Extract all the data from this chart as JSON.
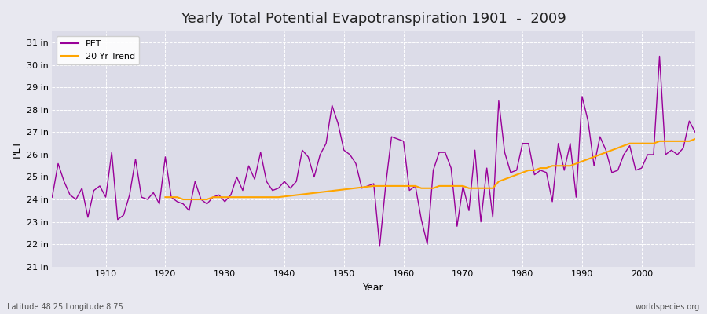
{
  "title": "Yearly Total Potential Evapotranspiration 1901  -  2009",
  "xlabel": "Year",
  "ylabel": "PET",
  "lat_lon_label": "Latitude 48.25 Longitude 8.75",
  "source_label": "worldspecies.org",
  "pet_color": "#990099",
  "trend_color": "#FFA500",
  "background_color": "#e8e8f0",
  "plot_bg_color": "#dcdce8",
  "ylim": [
    21,
    31.5
  ],
  "yticks": [
    21,
    22,
    23,
    24,
    25,
    26,
    27,
    28,
    29,
    30,
    31
  ],
  "ytick_labels": [
    "21 in",
    "22 in",
    "23 in",
    "24 in",
    "25 in",
    "26 in",
    "27 in",
    "28 in",
    "29 in",
    "30 in",
    "31 in"
  ],
  "years": [
    1901,
    1902,
    1903,
    1904,
    1905,
    1906,
    1907,
    1908,
    1909,
    1910,
    1911,
    1912,
    1913,
    1914,
    1915,
    1916,
    1917,
    1918,
    1919,
    1920,
    1921,
    1922,
    1923,
    1924,
    1925,
    1926,
    1927,
    1928,
    1929,
    1930,
    1931,
    1932,
    1933,
    1934,
    1935,
    1936,
    1937,
    1938,
    1939,
    1940,
    1941,
    1942,
    1943,
    1944,
    1945,
    1946,
    1947,
    1948,
    1949,
    1950,
    1951,
    1952,
    1953,
    1954,
    1955,
    1956,
    1957,
    1958,
    1959,
    1960,
    1961,
    1962,
    1963,
    1964,
    1965,
    1966,
    1967,
    1968,
    1969,
    1970,
    1971,
    1972,
    1973,
    1974,
    1975,
    1976,
    1977,
    1978,
    1979,
    1980,
    1981,
    1982,
    1983,
    1984,
    1985,
    1986,
    1987,
    1988,
    1989,
    1990,
    1991,
    1992,
    1993,
    1994,
    1995,
    1996,
    1997,
    1998,
    1999,
    2000,
    2001,
    2002,
    2003,
    2004,
    2005,
    2006,
    2007,
    2008,
    2009
  ],
  "pet_values": [
    24.1,
    25.6,
    24.8,
    24.2,
    24.0,
    24.5,
    23.2,
    24.4,
    24.6,
    24.1,
    26.1,
    23.1,
    23.3,
    24.2,
    25.8,
    24.1,
    24.0,
    24.3,
    23.8,
    25.9,
    24.1,
    23.9,
    23.8,
    23.5,
    24.8,
    24.0,
    23.8,
    24.1,
    24.2,
    23.9,
    24.2,
    25.0,
    24.4,
    25.5,
    24.9,
    26.1,
    24.8,
    24.4,
    24.5,
    24.8,
    24.5,
    24.8,
    26.2,
    25.9,
    25.0,
    26.0,
    26.5,
    28.2,
    27.4,
    26.2,
    26.0,
    25.6,
    24.5,
    24.6,
    24.7,
    21.9,
    24.6,
    26.8,
    26.7,
    26.6,
    24.4,
    24.6,
    23.1,
    22.0,
    25.3,
    26.1,
    26.1,
    25.4,
    22.8,
    24.6,
    23.5,
    26.2,
    23.0,
    25.4,
    23.2,
    28.4,
    26.1,
    25.2,
    25.3,
    26.5,
    26.5,
    25.1,
    25.3,
    25.2,
    23.9,
    26.5,
    25.3,
    26.5,
    24.1,
    28.6,
    27.5,
    25.5,
    26.8,
    26.2,
    25.2,
    25.3,
    26.0,
    26.4,
    25.3,
    25.4,
    26.0,
    26.0,
    30.4,
    26.0,
    26.2,
    26.0,
    26.3,
    27.5,
    27.0
  ],
  "trend_years": [
    1920,
    1921,
    1922,
    1923,
    1924,
    1925,
    1926,
    1927,
    1928,
    1929,
    1930,
    1931,
    1932,
    1933,
    1934,
    1935,
    1936,
    1937,
    1938,
    1939,
    1955,
    1956,
    1957,
    1958,
    1959,
    1960,
    1961,
    1962,
    1963,
    1964,
    1965,
    1966,
    1967,
    1968,
    1969,
    1970,
    1971,
    1972,
    1973,
    1974,
    1975,
    1976,
    1977,
    1978,
    1979,
    1980,
    1981,
    1982,
    1983,
    1984,
    1985,
    1986,
    1987,
    1988,
    1989,
    1990,
    1991,
    1992,
    1993,
    1994,
    1995,
    1996,
    1997,
    1998,
    1999,
    2000,
    2001,
    2002,
    2003,
    2004,
    2005,
    2006,
    2007,
    2008,
    2009
  ],
  "trend_values": [
    24.1,
    24.1,
    24.1,
    24.0,
    24.0,
    24.0,
    24.0,
    24.0,
    24.1,
    24.1,
    24.1,
    24.1,
    24.1,
    24.1,
    24.1,
    24.1,
    24.1,
    24.1,
    24.1,
    24.1,
    24.6,
    24.6,
    24.6,
    24.6,
    24.6,
    24.6,
    24.6,
    24.6,
    24.5,
    24.5,
    24.5,
    24.6,
    24.6,
    24.6,
    24.6,
    24.6,
    24.5,
    24.5,
    24.5,
    24.5,
    24.5,
    24.8,
    24.9,
    25.0,
    25.1,
    25.2,
    25.3,
    25.3,
    25.4,
    25.4,
    25.5,
    25.5,
    25.5,
    25.5,
    25.6,
    25.7,
    25.8,
    25.9,
    26.0,
    26.1,
    26.2,
    26.3,
    26.4,
    26.5,
    26.5,
    26.5,
    26.5,
    26.5,
    26.6,
    26.6,
    26.6,
    26.6,
    26.6,
    26.6,
    26.7
  ]
}
